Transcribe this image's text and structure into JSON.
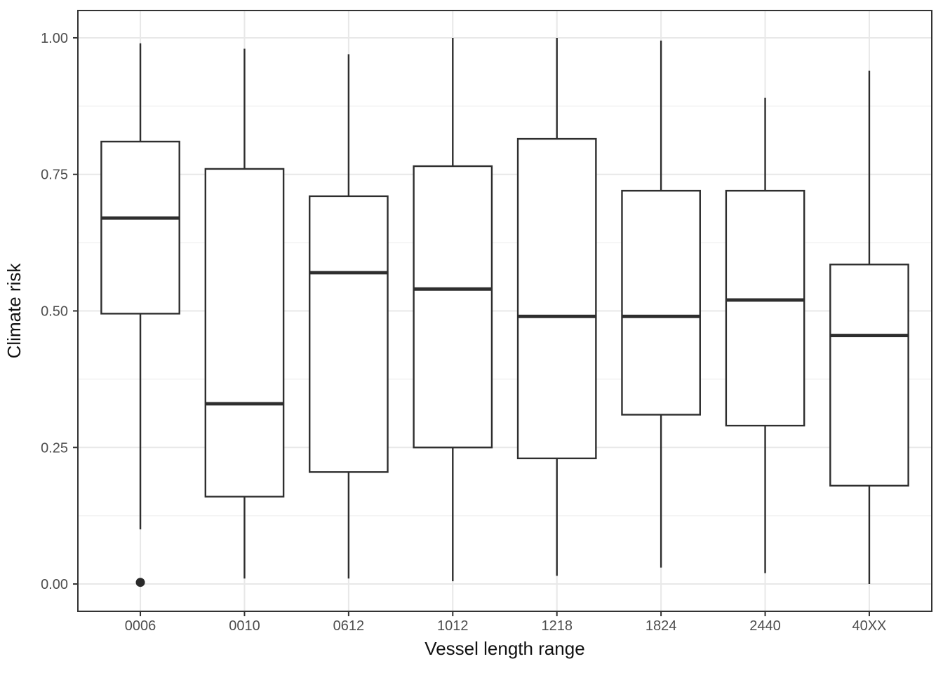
{
  "chart_data": {
    "type": "boxplot",
    "title": "",
    "xlabel": "Vessel length range",
    "ylabel": "Climate risk",
    "categories": [
      "0006",
      "0010",
      "0612",
      "1012",
      "1218",
      "1824",
      "2440",
      "40XX"
    ],
    "y_tick_values": [
      0,
      0.25,
      0.5,
      0.75,
      1
    ],
    "y_tick_labels": [
      "0.00",
      "0.25",
      "0.50",
      "0.75",
      "1.00"
    ],
    "y_minor_gridlines": [
      0.125,
      0.375,
      0.625,
      0.875
    ],
    "ylim": [
      -0.05,
      1.05
    ],
    "grid": {
      "horizontal_major": true,
      "horizontal_minor": true,
      "vertical_major": true,
      "vertical_minor": false
    },
    "legend_position": "none",
    "boxes": [
      {
        "category": "0006",
        "whisker_low": 0.1,
        "q1": 0.495,
        "median": 0.67,
        "q3": 0.81,
        "whisker_high": 0.99,
        "outliers": [
          0.003
        ]
      },
      {
        "category": "0010",
        "whisker_low": 0.01,
        "q1": 0.16,
        "median": 0.33,
        "q3": 0.76,
        "whisker_high": 0.98,
        "outliers": []
      },
      {
        "category": "0612",
        "whisker_low": 0.01,
        "q1": 0.205,
        "median": 0.57,
        "q3": 0.71,
        "whisker_high": 0.97,
        "outliers": []
      },
      {
        "category": "1012",
        "whisker_low": 0.005,
        "q1": 0.25,
        "median": 0.54,
        "q3": 0.765,
        "whisker_high": 1.0,
        "outliers": []
      },
      {
        "category": "1218",
        "whisker_low": 0.015,
        "q1": 0.23,
        "median": 0.49,
        "q3": 0.815,
        "whisker_high": 1.0,
        "outliers": []
      },
      {
        "category": "1824",
        "whisker_low": 0.03,
        "q1": 0.31,
        "median": 0.49,
        "q3": 0.72,
        "whisker_high": 0.995,
        "outliers": []
      },
      {
        "category": "2440",
        "whisker_low": 0.02,
        "q1": 0.29,
        "median": 0.52,
        "q3": 0.72,
        "whisker_high": 0.89,
        "outliers": []
      },
      {
        "category": "40XX",
        "whisker_low": 0.0,
        "q1": 0.18,
        "median": 0.455,
        "q3": 0.585,
        "whisker_high": 0.94,
        "outliers": []
      }
    ]
  },
  "colors": {
    "panel_background": "#ffffff",
    "panel_border": "#333333",
    "grid_major": "#e8e8e8",
    "grid_minor": "#f2f2f2",
    "box_stroke": "#2e2e2e",
    "box_fill": "#ffffff",
    "axis_tick": "#333333",
    "tick_label": "#4d4d4d",
    "axis_title": "#111111",
    "outlier": "#2a2a2a"
  }
}
